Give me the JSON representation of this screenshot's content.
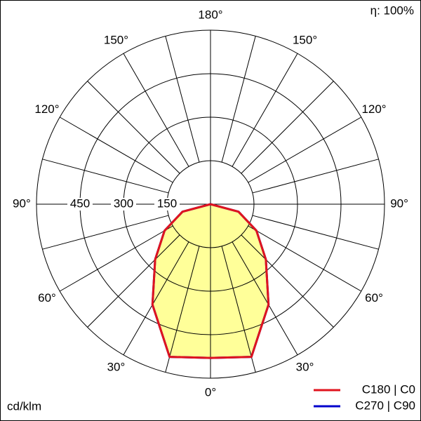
{
  "chart_data": {
    "type": "polar",
    "unit_label": "cd/klm",
    "efficiency_label": "η: 100%",
    "theta": [
      0,
      15,
      30,
      45,
      60,
      75,
      90,
      105,
      120,
      135,
      150,
      165,
      180
    ],
    "series": [
      {
        "name": "C270 | C90",
        "color": "#0000cc",
        "values": [
          530,
          545,
          400,
          270,
          183,
          100,
          0,
          0,
          0,
          0,
          0,
          0,
          0
        ]
      },
      {
        "name": "C180 | C0",
        "color": "#e0141e",
        "values": [
          530,
          545,
          400,
          270,
          183,
          100,
          0,
          0,
          0,
          0,
          0,
          0,
          0
        ]
      }
    ],
    "fill_color": "#ffff99",
    "rlim": [
      0,
      600
    ],
    "rticks": [
      150,
      300,
      450
    ],
    "thetaticks": [
      {
        "value": 0,
        "label": "0°"
      },
      {
        "value": 30,
        "label": "30°"
      },
      {
        "value": 60,
        "label": "60°"
      },
      {
        "value": 90,
        "label": "90°"
      },
      {
        "value": 120,
        "label": "120°"
      },
      {
        "value": 150,
        "label": "150°"
      },
      {
        "value": 180,
        "label": "180°"
      }
    ]
  }
}
